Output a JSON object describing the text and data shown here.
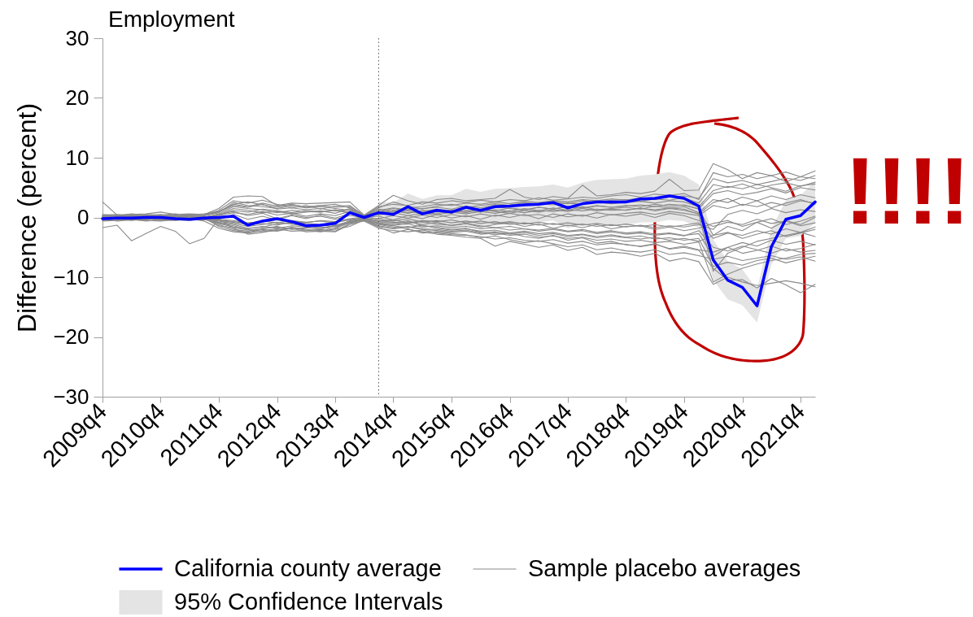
{
  "chart_data": {
    "type": "line",
    "title": "Employment",
    "ylabel": "Difference (percent)",
    "x": [
      "2009-10",
      "2010-01",
      "2010-04",
      "2010-07",
      "2010-10",
      "2011-01",
      "2011-04",
      "2011-07",
      "2011-10",
      "2012-01",
      "2012-04",
      "2012-07",
      "2012-10",
      "2013-01",
      "2013-04",
      "2013-07",
      "2013-10",
      "2014-01",
      "2014-04",
      "2014-07",
      "2014-10",
      "2015-01",
      "2015-04",
      "2015-07",
      "2015-10",
      "2016-01",
      "2016-04",
      "2016-07",
      "2016-10",
      "2017-01",
      "2017-04",
      "2017-07",
      "2017-10",
      "2018-01",
      "2018-04",
      "2018-07",
      "2018-10",
      "2019-01",
      "2019-04",
      "2019-07",
      "2019-10",
      "2020-01",
      "2020-04",
      "2020-07",
      "2020-10",
      "2021-01",
      "2021-04",
      "2021-07",
      "2021-10",
      "2022-01"
    ],
    "xlim": [
      "2009-10",
      "2022-01"
    ],
    "xticks": [
      {
        "value": "2009-10",
        "label": "2009q4"
      },
      {
        "value": "2010-10",
        "label": "2010q4"
      },
      {
        "value": "2011-10",
        "label": "2011q4"
      },
      {
        "value": "2012-10",
        "label": "2012q4"
      },
      {
        "value": "2013-10",
        "label": "2013q4"
      },
      {
        "value": "2014-10",
        "label": "2014q4"
      },
      {
        "value": "2015-10",
        "label": "2015q4"
      },
      {
        "value": "2016-10",
        "label": "2016q4"
      },
      {
        "value": "2017-10",
        "label": "2017q4"
      },
      {
        "value": "2018-10",
        "label": "2018q4"
      },
      {
        "value": "2019-10",
        "label": "2019q4"
      },
      {
        "value": "2020-10",
        "label": "2020q4"
      },
      {
        "value": "2021-10",
        "label": "2021q4"
      }
    ],
    "ylim": [
      -30,
      30
    ],
    "yticks": [
      -30,
      -20,
      -10,
      0,
      10,
      20,
      30
    ],
    "series": [
      {
        "name": "California county average",
        "color": "#0000ff",
        "values": [
          -0.2,
          -0.1,
          -0.1,
          0,
          0,
          -0.2,
          -0.3,
          -0.1,
          0,
          0.2,
          -1.3,
          -0.6,
          -0.2,
          -0.7,
          -1.4,
          -1.3,
          -1.0,
          0.8,
          0,
          0.8,
          0.5,
          1.8,
          0.6,
          1.2,
          0.9,
          1.7,
          1.2,
          1.8,
          1.9,
          2.1,
          2.2,
          2.5,
          1.6,
          2.3,
          2.6,
          2.6,
          2.6,
          3.1,
          3.2,
          3.6,
          3.2,
          1.9,
          -7.1,
          -10.5,
          -11.7,
          -14.8,
          -4.9,
          -0.3,
          0.3,
          2.6
        ]
      },
      {
        "name": "Sample placebo averages",
        "color": "#8a8a8a",
        "values": [
          2.6,
          0.4,
          0.5,
          0.6,
          0.9,
          0.5,
          0.6,
          0.5,
          1.5,
          3.4,
          3.6,
          3.5,
          2.0,
          2.4,
          2.3,
          2.4,
          2.5,
          2.6,
          0.4,
          2.0,
          3.7,
          2.8,
          2.2,
          3.0,
          3.2,
          2.8,
          3.0,
          3.2,
          4.7,
          3.4,
          3.0,
          3.5,
          3.2,
          5.4,
          3.6,
          3.8,
          4.2,
          4.0,
          4.4,
          6.4,
          4.5,
          4.6,
          9.0,
          8.0,
          6.5,
          7.5,
          7.0,
          7.6,
          6.8,
          7.8
        ]
      },
      {
        "color": "#8a8a8a",
        "values": [
          -1.7,
          -1.3,
          -3.9,
          -2.7,
          -1.5,
          -2.3,
          -4.4,
          -3.5,
          -0.2,
          -1.8,
          -2.8,
          -2.5,
          -2.0,
          -1.8,
          -2.4,
          -2.3,
          -2.4,
          -1.2,
          -0.5,
          -1.6,
          -2.6,
          -2.0,
          -2.4,
          -2.8,
          -3.0,
          -3.3,
          -3.5,
          -4.8,
          -4.0,
          -4.5,
          -5.0,
          -4.6,
          -5.5,
          -5.0,
          -6.2,
          -5.8,
          -6.0,
          -6.5,
          -6.0,
          -7.3,
          -6.8,
          -7.4,
          -11.2,
          -10.0,
          -10.8,
          -11.4,
          -11.0,
          -10.6,
          -11.0,
          -11.6
        ]
      },
      {
        "color": "#8a8a8a",
        "values": [
          0.2,
          -0.3,
          0.0,
          -0.4,
          0.1,
          -0.3,
          0.2,
          -0.2,
          -0.8,
          -1.2,
          -1.8,
          -1.6,
          -1.1,
          -0.9,
          -1.3,
          -1.7,
          -1.4,
          -0.6,
          -0.1,
          -0.7,
          -1.0,
          -0.5,
          -1.4,
          -1.6,
          -2.0,
          -1.8,
          -2.5,
          -2.9,
          -2.6,
          -3.2,
          -3.5,
          -3.0,
          -3.8,
          -3.4,
          -4.3,
          -4.0,
          -4.6,
          -4.8,
          -4.4,
          -5.3,
          -5.0,
          -5.5,
          -8.5,
          -10.5,
          -10.4,
          -11.8,
          -10.2,
          -11.3,
          -12.6,
          -11.2
        ]
      },
      {
        "color": "#8a8a8a",
        "values": [
          0.3,
          0.2,
          0.4,
          0.3,
          0.5,
          0.2,
          0.4,
          0.3,
          0.8,
          2.5,
          2.0,
          1.8,
          1.5,
          1.9,
          1.6,
          1.8,
          1.5,
          1.2,
          0.2,
          1.4,
          1.0,
          1.6,
          1.8,
          2.2,
          2.0,
          2.4,
          2.2,
          2.6,
          2.3,
          2.7,
          2.5,
          2.8,
          2.6,
          3.0,
          2.8,
          3.1,
          2.9,
          3.3,
          3.0,
          3.4,
          3.6,
          3.2,
          6.5,
          5.8,
          6.2,
          5.5,
          6.0,
          6.6,
          6.2,
          7.0
        ]
      },
      {
        "color": "#8a8a8a",
        "values": [
          -0.3,
          0.1,
          -0.2,
          0.2,
          0.0,
          0.3,
          0.1,
          -0.2,
          0.4,
          1.5,
          1.2,
          0.8,
          1.0,
          0.6,
          0.9,
          1.1,
          0.7,
          1.5,
          0.0,
          0.6,
          1.2,
          0.8,
          1.0,
          1.4,
          1.1,
          1.6,
          1.3,
          1.8,
          1.5,
          1.2,
          1.7,
          1.4,
          1.9,
          1.6,
          2.0,
          1.7,
          1.9,
          2.1,
          1.8,
          2.2,
          2.0,
          1.5,
          4.0,
          4.5,
          3.8,
          4.2,
          4.8,
          4.1,
          5.0,
          4.6
        ]
      },
      {
        "color": "#8a8a8a",
        "values": [
          0.1,
          -0.2,
          0.2,
          -0.1,
          0.1,
          -0.2,
          0.0,
          0.2,
          -0.3,
          0.5,
          -0.3,
          0.2,
          -0.4,
          0.3,
          -0.2,
          0.4,
          -0.1,
          0.6,
          0.1,
          -0.2,
          0.3,
          -0.1,
          0.4,
          0.0,
          0.5,
          0.1,
          0.6,
          0.2,
          0.7,
          0.3,
          0.5,
          0.0,
          0.6,
          0.2,
          0.8,
          0.4,
          0.7,
          0.9,
          0.5,
          1.0,
          0.7,
          0.3,
          2.0,
          1.5,
          2.2,
          1.8,
          2.5,
          2.0,
          2.8,
          2.4
        ]
      },
      {
        "color": "#8a8a8a",
        "values": [
          -0.4,
          -0.3,
          -0.5,
          -0.2,
          -0.4,
          -0.1,
          -0.3,
          -0.4,
          -0.6,
          -1.0,
          -1.5,
          -1.2,
          -0.8,
          -1.1,
          -1.5,
          -1.2,
          -1.6,
          -0.8,
          -0.2,
          -0.9,
          -1.3,
          -0.7,
          -1.2,
          -0.8,
          -1.4,
          -1.0,
          -1.6,
          -1.2,
          -0.9,
          -1.5,
          -1.1,
          -1.8,
          -1.3,
          -1.7,
          -1.2,
          -1.9,
          -1.5,
          -1.4,
          -2.0,
          -1.6,
          -2.2,
          -1.8,
          -1.0,
          -0.5,
          -1.5,
          -0.8,
          -0.2,
          -1.2,
          -0.6,
          0.2
        ]
      },
      {
        "color": "#8a8a8a",
        "values": [
          0.2,
          -0.4,
          0.1,
          -0.3,
          0.2,
          -0.1,
          -0.4,
          0.0,
          -1.2,
          -2.0,
          -2.3,
          -1.8,
          -1.5,
          -2.0,
          -1.8,
          -1.6,
          -2.0,
          -1.5,
          -0.4,
          -1.4,
          -1.8,
          -1.5,
          -1.9,
          -2.0,
          -2.3,
          -2.1,
          -2.6,
          -2.4,
          -2.8,
          -2.5,
          -3.0,
          -2.7,
          -3.2,
          -2.9,
          -3.4,
          -3.1,
          -3.4,
          -3.6,
          -3.3,
          -3.8,
          -3.5,
          -4.0,
          -3.0,
          -2.5,
          -3.5,
          -2.8,
          -2.2,
          -3.2,
          -2.6,
          -2.0
        ]
      },
      {
        "color": "#8a8a8a",
        "values": [
          -0.6,
          -0.5,
          -0.3,
          -0.6,
          -0.4,
          -0.5,
          -0.2,
          -0.6,
          -1.8,
          -2.4,
          -2.6,
          -2.2,
          -1.9,
          -2.3,
          -2.2,
          -2.0,
          -2.3,
          -1.0,
          -0.6,
          -1.8,
          -2.2,
          -2.4,
          -2.1,
          -2.6,
          -2.9,
          -3.0,
          -3.2,
          -3.6,
          -3.4,
          -3.8,
          -4.0,
          -3.7,
          -4.3,
          -4.0,
          -4.6,
          -4.3,
          -4.5,
          -4.9,
          -4.5,
          -5.2,
          -4.8,
          -5.4,
          -5.8,
          -5.0,
          -6.0,
          -5.5,
          -4.8,
          -5.6,
          -5.2,
          -4.5
        ]
      },
      {
        "color": "#8a8a8a",
        "values": [
          -0.2,
          -0.6,
          -0.4,
          -0.5,
          -0.6,
          -0.4,
          -0.5,
          -0.3,
          -0.9,
          -1.4,
          -2.0,
          -2.4,
          -2.2,
          -1.6,
          -2.0,
          -2.2,
          -1.8,
          -0.5,
          -0.3,
          -1.2,
          -1.6,
          -1.9,
          -2.6,
          -2.4,
          -2.7,
          -2.9,
          -3.4,
          -3.1,
          -3.7,
          -4.2,
          -3.9,
          -4.4,
          -4.9,
          -4.6,
          -5.4,
          -5.1,
          -5.6,
          -5.8,
          -5.4,
          -6.2,
          -5.9,
          -6.4,
          -7.0,
          -6.5,
          -7.2,
          -6.8,
          -6.4,
          -7.0,
          -6.6,
          -7.3
        ]
      },
      {
        "color": "#8a8a8a",
        "values": [
          0.4,
          0.5,
          0.3,
          0.5,
          0.4,
          0.6,
          0.3,
          0.4,
          1.2,
          2.8,
          2.4,
          2.9,
          2.2,
          1.6,
          2.0,
          1.4,
          1.9,
          2.0,
          0.3,
          1.8,
          2.2,
          2.0,
          2.6,
          2.4,
          2.8,
          2.5,
          2.9,
          2.6,
          3.0,
          2.8,
          3.3,
          2.9,
          3.1,
          3.4,
          3.2,
          3.6,
          3.8,
          3.4,
          3.9,
          3.7,
          4.0,
          3.0,
          7.5,
          6.8,
          7.2,
          6.5,
          7.0,
          6.0,
          6.8,
          6.5
        ]
      },
      {
        "color": "#8a8a8a",
        "values": [
          -0.1,
          0.0,
          -0.1,
          0.1,
          -0.2,
          0.0,
          -0.1,
          0.1,
          0.3,
          0.8,
          0.5,
          1.0,
          0.4,
          0.7,
          0.2,
          0.6,
          0.3,
          1.0,
          0.2,
          0.4,
          0.8,
          0.3,
          0.7,
          0.4,
          0.9,
          0.6,
          1.0,
          0.7,
          1.1,
          0.8,
          1.2,
          1.0,
          1.3,
          1.1,
          1.4,
          1.2,
          1.3,
          1.5,
          1.3,
          1.6,
          1.4,
          0.5,
          -9.0,
          -6.0,
          -5.0,
          -4.0,
          -3.5,
          -3.0,
          -2.5,
          -3.2
        ]
      },
      {
        "color": "#8a8a8a",
        "values": [
          0.0,
          0.3,
          -0.1,
          0.2,
          0.3,
          0.1,
          0.2,
          0.0,
          0.6,
          1.8,
          1.5,
          1.3,
          0.8,
          1.2,
          1.0,
          0.9,
          1.2,
          0.9,
          0.1,
          0.9,
          1.5,
          1.1,
          0.6,
          1.0,
          0.7,
          1.2,
          0.9,
          1.3,
          1.0,
          1.5,
          1.1,
          1.6,
          1.2,
          1.8,
          1.3,
          1.5,
          1.7,
          1.4,
          1.9,
          1.6,
          1.8,
          0.8,
          3.0,
          2.5,
          3.4,
          2.8,
          3.6,
          3.0,
          3.8,
          3.3
        ]
      },
      {
        "color": "#8a8a8a",
        "values": [
          -0.2,
          -0.1,
          -0.3,
          -0.1,
          -0.3,
          -0.2,
          -0.1,
          -0.3,
          -0.4,
          -0.7,
          -1.0,
          -0.6,
          -0.9,
          -0.5,
          -0.8,
          -0.6,
          -0.9,
          -0.3,
          -0.1,
          -0.5,
          -0.8,
          -1.0,
          -0.7,
          -1.1,
          -1.3,
          -1.0,
          -1.4,
          -1.7,
          -1.5,
          -1.9,
          -2.1,
          -1.8,
          -2.3,
          -2.0,
          -2.5,
          -2.2,
          -2.6,
          -2.4,
          -2.8,
          -2.6,
          -3.0,
          -2.7,
          -6.5,
          -5.0,
          -4.2,
          -4.8,
          -3.8,
          -4.5,
          -4.0,
          -4.6
        ]
      },
      {
        "color": "#8a8a8a",
        "values": [
          0.5,
          0.3,
          0.6,
          0.4,
          0.3,
          0.5,
          0.4,
          0.6,
          1.0,
          2.2,
          2.6,
          2.1,
          1.7,
          2.1,
          1.8,
          2.0,
          1.7,
          1.8,
          0.3,
          1.6,
          2.6,
          1.9,
          1.4,
          1.9,
          2.2,
          1.7,
          2.0,
          2.3,
          2.0,
          2.5,
          2.2,
          2.6,
          2.3,
          2.8,
          2.5,
          2.9,
          3.0,
          2.7,
          3.1,
          2.9,
          3.3,
          2.4,
          5.5,
          5.0,
          5.6,
          4.8,
          5.4,
          5.8,
          5.2,
          5.9
        ]
      },
      {
        "color": "#8a8a8a",
        "values": [
          -0.5,
          -0.2,
          -0.4,
          -0.2,
          -0.5,
          -0.3,
          -0.4,
          -0.2,
          -1.4,
          -1.7,
          -2.1,
          -1.9,
          -1.6,
          -1.9,
          -1.7,
          -1.9,
          -1.5,
          -0.9,
          -0.4,
          -1.1,
          -1.4,
          -1.7,
          -1.3,
          -1.8,
          -2.1,
          -1.9,
          -2.3,
          -2.1,
          -2.6,
          -2.3,
          -2.7,
          -2.5,
          -3.0,
          -2.8,
          -3.2,
          -2.9,
          -3.3,
          -3.1,
          -3.6,
          -3.4,
          -3.8,
          -3.5,
          -8.2,
          -7.5,
          -8.0,
          -7.2,
          -6.8,
          -7.6,
          -7.0,
          -6.5
        ]
      },
      {
        "color": "#8a8a8a",
        "values": [
          0.1,
          0.2,
          0.0,
          0.3,
          0.1,
          0.2,
          0.1,
          0.3,
          0.9,
          2.0,
          1.7,
          2.2,
          1.4,
          1.6,
          1.3,
          1.5,
          1.1,
          1.3,
          0.2,
          1.0,
          0.7,
          1.3,
          0.9,
          0.6,
          1.2,
          0.8,
          1.4,
          1.0,
          0.7,
          1.2,
          0.9,
          1.3,
          1.0,
          1.5,
          1.1,
          1.4,
          1.2,
          1.6,
          1.1,
          1.5,
          1.2,
          0.6,
          2.5,
          3.2,
          2.0,
          2.8,
          1.6,
          2.4,
          3.0,
          2.2
        ]
      },
      {
        "color": "#8a8a8a",
        "values": [
          -0.1,
          -0.3,
          -0.2,
          -0.4,
          -0.1,
          -0.3,
          -0.2,
          -0.1,
          -0.5,
          -0.8,
          -1.2,
          -1.0,
          -1.3,
          -0.7,
          -1.0,
          -1.2,
          -0.8,
          -0.4,
          0.0,
          -0.6,
          -0.4,
          -0.9,
          -0.5,
          -0.7,
          -0.4,
          -0.9,
          -0.6,
          -1.0,
          -0.7,
          -1.1,
          -0.8,
          -1.2,
          -0.9,
          -1.3,
          -1.0,
          -1.4,
          -1.1,
          -1.5,
          -1.2,
          -1.6,
          -1.3,
          -0.9,
          -3.5,
          -2.6,
          -3.0,
          -2.2,
          -2.8,
          -1.9,
          -2.5,
          -1.6
        ]
      },
      {
        "color": "#8a8a8a",
        "values": [
          0.2,
          0.4,
          0.1,
          0.3,
          0.2,
          0.4,
          0.2,
          0.3,
          1.0,
          2.2,
          1.8,
          2.4,
          1.9,
          2.2,
          1.7,
          2.0,
          2.2,
          1.6,
          0.3,
          1.2,
          1.6,
          1.3,
          1.5,
          1.7,
          1.4,
          1.9,
          1.6,
          2.1,
          1.8,
          2.0,
          2.3,
          2.1,
          2.4,
          2.2,
          2.6,
          2.3,
          2.5,
          2.7,
          2.4,
          2.8,
          2.6,
          1.8,
          4.5,
          5.2,
          4.8,
          5.5,
          5.0,
          4.4,
          5.3,
          5.6
        ]
      },
      {
        "color": "#8a8a8a",
        "values": [
          -0.3,
          -0.1,
          -0.4,
          -0.3,
          -0.2,
          -0.4,
          -0.3,
          -0.2,
          -1.0,
          -1.6,
          -1.9,
          -1.5,
          -1.8,
          -1.4,
          -1.6,
          -1.9,
          -1.3,
          -0.7,
          -0.2,
          -1.0,
          -1.3,
          -1.1,
          -1.6,
          -1.4,
          -1.7,
          -1.5,
          -1.9,
          -1.7,
          -2.1,
          -1.9,
          -2.3,
          -2.0,
          -2.4,
          -2.2,
          -2.7,
          -2.4,
          -2.8,
          -2.6,
          -3.0,
          -2.7,
          -3.1,
          -2.2,
          -5.0,
          -5.6,
          -4.8,
          -5.4,
          -6.0,
          -5.2,
          -5.8,
          -5.5
        ]
      },
      {
        "color": "#8a8a8a",
        "values": [
          0.0,
          0.1,
          0.2,
          0.0,
          -0.1,
          0.1,
          0.0,
          -0.1,
          0.5,
          1.0,
          0.3,
          0.7,
          -0.2,
          0.4,
          0.0,
          0.2,
          -0.3,
          0.3,
          0.0,
          0.2,
          -0.4,
          0.3,
          -0.2,
          0.5,
          -0.1,
          0.3,
          -0.3,
          0.4,
          0.0,
          0.5,
          -0.2,
          0.6,
          0.1,
          0.4,
          -0.1,
          0.5,
          0.2,
          0.6,
          0.0,
          0.7,
          0.3,
          -0.5,
          -1.5,
          -0.8,
          -1.2,
          -0.3,
          -1.0,
          -0.6,
          -1.4,
          -0.9
        ]
      },
      {
        "color": "#8a8a8a",
        "values": [
          -0.2,
          0.0,
          -0.2,
          0.1,
          -0.1,
          -0.2,
          0.1,
          -0.1,
          -0.3,
          -0.5,
          -0.9,
          -0.7,
          -0.4,
          -0.6,
          -0.9,
          -0.5,
          -0.7,
          -0.2,
          0.1,
          -0.3,
          -0.6,
          -0.2,
          -0.8,
          -0.5,
          -0.9,
          -0.6,
          -1.0,
          -0.7,
          -1.2,
          -0.9,
          -1.3,
          -1.0,
          -1.4,
          -1.1,
          -1.5,
          -1.2,
          -1.6,
          -1.3,
          -1.7,
          -1.4,
          -1.6,
          -1.2,
          -2.0,
          0.5,
          1.2,
          0.6,
          1.5,
          0.8,
          1.3,
          1.0
        ]
      },
      {
        "color": "#8a8a8a",
        "values": [
          0.3,
          0.1,
          0.3,
          0.2,
          0.0,
          0.2,
          0.3,
          0.1,
          0.4,
          1.2,
          0.9,
          1.4,
          1.1,
          0.8,
          1.2,
          0.9,
          1.3,
          0.7,
          0.2,
          0.8,
          1.1,
          0.7,
          1.2,
          0.9,
          1.3,
          1.0,
          1.4,
          1.1,
          1.6,
          1.3,
          1.7,
          1.4,
          1.8,
          1.5,
          1.9,
          1.7,
          2.0,
          1.8,
          2.2,
          1.9,
          2.1,
          1.4,
          -3.0,
          -1.5,
          -2.2,
          -0.8,
          -1.8,
          -0.5,
          -1.2,
          0.0
        ]
      },
      {
        "color": "#8a8a8a",
        "values": [
          0.1,
          -0.2,
          0.0,
          -0.2,
          0.0,
          0.1,
          -0.2,
          0.0,
          -1.5,
          -2.2,
          -2.5,
          -2.0,
          -2.3,
          -1.8,
          -2.1,
          -2.4,
          -1.9,
          -0.8,
          -0.3,
          -1.5,
          -1.9,
          -1.6,
          -2.0,
          -2.2,
          -2.5,
          -2.3,
          -2.8,
          -2.6,
          -3.0,
          -2.8,
          -3.3,
          -3.1,
          -3.5,
          -3.3,
          -3.8,
          -3.6,
          -4.0,
          -3.8,
          -4.2,
          -4.0,
          -4.5,
          -4.1,
          -10.8,
          -9.5,
          -8.5,
          -7.8,
          -7.2,
          -6.8,
          -6.2,
          -6.0
        ]
      },
      {
        "name": "95% Confidence Intervals",
        "type": "area",
        "color": "#e4e4e4",
        "values": [
          null,
          null,
          null,
          null,
          null,
          null,
          null,
          null,
          null,
          null,
          null,
          null,
          null,
          null,
          null,
          null,
          null,
          null,
          null,
          null,
          null,
          null,
          null,
          null,
          null,
          null,
          null,
          null,
          null,
          null,
          null,
          null,
          null,
          null,
          null,
          null,
          null,
          null,
          null,
          null,
          null,
          null,
          null,
          null,
          null,
          null,
          null,
          null,
          null,
          null
        ],
        "lower": [
          null,
          null,
          null,
          null,
          null,
          null,
          null,
          null,
          null,
          null,
          null,
          null,
          null,
          null,
          null,
          null,
          null,
          null,
          null,
          -1.0,
          -1.5,
          -0.4,
          -1.9,
          -1.3,
          -1.9,
          -1.4,
          -1.9,
          -1.2,
          -1.1,
          -0.9,
          -0.8,
          -0.5,
          -1.8,
          -1.2,
          -1.1,
          -1.2,
          -1.3,
          -0.8,
          -0.8,
          -0.4,
          -0.6,
          -1.7,
          -10.5,
          -13.7,
          -14.7,
          -17.6,
          -7.9,
          -3.5,
          -3.1,
          -0.9
        ],
        "upper": [
          null,
          null,
          null,
          null,
          null,
          null,
          null,
          null,
          null,
          null,
          null,
          null,
          null,
          null,
          null,
          null,
          null,
          null,
          null,
          2.6,
          2.5,
          4.0,
          3.1,
          3.7,
          3.7,
          4.8,
          4.3,
          4.8,
          4.9,
          5.1,
          5.2,
          5.5,
          5.0,
          5.8,
          6.3,
          6.4,
          6.5,
          7.0,
          7.2,
          7.6,
          7.0,
          5.5,
          -3.7,
          -7.3,
          -8.7,
          -12.0,
          -1.9,
          2.9,
          3.7,
          6.1
        ]
      }
    ],
    "ref_lines": [
      {
        "axis": "x",
        "value": "2014-07",
        "line_style": "dotted",
        "color": "#505050"
      }
    ],
    "legend": "bottom",
    "annotations": [
      "!!!!"
    ]
  }
}
